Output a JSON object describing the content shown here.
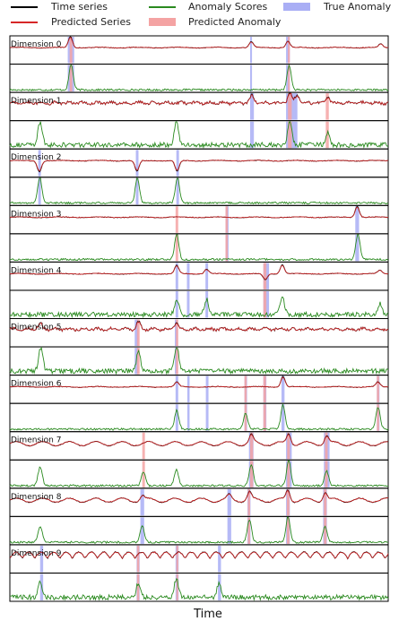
{
  "legend": {
    "time_series": "Time series",
    "predicted_series": "Predicted Series",
    "anomaly_scores": "Anomaly Scores",
    "predicted_anomaly": "Predicted Anomaly",
    "true_anomaly": "True Anomaly"
  },
  "colors": {
    "time_series": "#000000",
    "predicted_series": "#d62728",
    "anomaly_scores": "#2a8a1f",
    "predicted_anomaly": "#f4a3a3",
    "true_anomaly": "#a9aef5"
  },
  "chart_data": {
    "type": "line",
    "xlabel": "Time",
    "x_range": [
      0,
      100
    ],
    "grid": false,
    "legend_position": "top",
    "dimensions": [
      {
        "label": "Dimension 0",
        "true_anomaly": [
          [
            15.3,
            17.0
          ],
          [
            63.5,
            64.0
          ],
          [
            73.0,
            74.0
          ]
        ],
        "predicted_anomaly": [
          [
            15.8,
            16.5
          ],
          [
            73.5,
            74.0
          ]
        ],
        "series_peaks": [
          [
            16.0,
            0.95
          ],
          [
            63.8,
            0.5
          ],
          [
            73.5,
            0.55
          ],
          [
            98.0,
            0.3
          ]
        ],
        "score_peaks": [
          [
            16.2,
            0.95
          ],
          [
            73.8,
            0.9
          ]
        ]
      },
      {
        "label": "Dimension 1",
        "true_anomaly": [
          [
            63.5,
            64.5
          ],
          [
            73.0,
            76.0
          ]
        ],
        "predicted_anomaly": [
          [
            73.5,
            74.5
          ],
          [
            83.5,
            84.3
          ]
        ],
        "series_peaks": [
          [
            64.0,
            0.6
          ],
          [
            74.0,
            0.9
          ],
          [
            76.0,
            0.7
          ],
          [
            84.0,
            0.55
          ]
        ],
        "score_peaks": [
          [
            8.0,
            0.85
          ],
          [
            44.0,
            0.9
          ],
          [
            74.0,
            0.85
          ],
          [
            84.0,
            0.45
          ]
        ]
      },
      {
        "label": "Dimension 2",
        "true_anomaly": [
          [
            7.5,
            8.2
          ],
          [
            33.3,
            34.0
          ],
          [
            44.0,
            44.7
          ]
        ],
        "predicted_anomaly": [],
        "series_peaks": [
          [
            7.8,
            -0.9
          ],
          [
            33.6,
            -0.9
          ],
          [
            44.2,
            -0.9
          ]
        ],
        "score_peaks": [
          [
            7.9,
            0.95
          ],
          [
            33.7,
            0.95
          ],
          [
            44.3,
            0.95
          ]
        ]
      },
      {
        "label": "Dimension 3",
        "true_anomaly": [
          [
            57.0,
            57.8
          ],
          [
            91.3,
            92.3
          ]
        ],
        "predicted_anomaly": [
          [
            43.8,
            44.5
          ],
          [
            57.0,
            57.6
          ]
        ],
        "series_peaks": [
          [
            91.8,
            0.95
          ]
        ],
        "score_peaks": [
          [
            44.1,
            0.95
          ],
          [
            92.0,
            0.95
          ]
        ]
      },
      {
        "label": "Dimension 4",
        "true_anomaly": [
          [
            43.8,
            44.5
          ],
          [
            46.8,
            47.5
          ],
          [
            51.7,
            52.4
          ],
          [
            67.0,
            68.5
          ]
        ],
        "predicted_anomaly": [
          [
            67.0,
            67.8
          ]
        ],
        "series_peaks": [
          [
            44.1,
            0.7
          ],
          [
            52.0,
            0.4
          ],
          [
            67.5,
            -0.5
          ],
          [
            72.0,
            0.8
          ],
          [
            97.8,
            0.3
          ]
        ],
        "score_peaks": [
          [
            44.1,
            0.6
          ],
          [
            52.0,
            0.55
          ],
          [
            72.0,
            0.7
          ],
          [
            97.8,
            0.4
          ]
        ]
      },
      {
        "label": "Dimension 5",
        "true_anomaly": [
          [
            33.0,
            34.0
          ],
          [
            43.6,
            44.4
          ]
        ],
        "predicted_anomaly": [
          [
            33.6,
            34.3
          ],
          [
            43.9,
            44.5
          ]
        ],
        "series_peaks": [
          [
            8.0,
            0.5
          ],
          [
            34.0,
            0.6
          ],
          [
            44.0,
            0.55
          ]
        ],
        "score_peaks": [
          [
            8.2,
            0.9
          ],
          [
            34.0,
            0.7
          ],
          [
            44.1,
            0.95
          ]
        ]
      },
      {
        "label": "Dimension 6",
        "true_anomaly": [
          [
            43.8,
            44.5
          ],
          [
            46.9,
            47.5
          ],
          [
            51.8,
            52.5
          ],
          [
            62.0,
            62.7
          ],
          [
            67.0,
            67.8
          ],
          [
            71.8,
            72.6
          ],
          [
            97.0,
            97.7
          ]
        ],
        "predicted_anomaly": [
          [
            62.0,
            62.6
          ],
          [
            67.0,
            67.7
          ],
          [
            97.0,
            97.6
          ]
        ],
        "series_peaks": [
          [
            44.1,
            0.4
          ],
          [
            72.2,
            0.9
          ],
          [
            97.3,
            0.4
          ]
        ],
        "score_peaks": [
          [
            44.1,
            0.7
          ],
          [
            62.3,
            0.6
          ],
          [
            72.2,
            0.9
          ],
          [
            97.3,
            0.8
          ]
        ]
      },
      {
        "label": "Dimension 7",
        "true_anomaly": [
          [
            63.2,
            64.4
          ],
          [
            73.0,
            74.5
          ],
          [
            83.0,
            84.5
          ]
        ],
        "predicted_anomaly": [
          [
            35.0,
            35.7
          ],
          [
            63.5,
            64.3
          ],
          [
            73.3,
            74.0
          ],
          [
            83.3,
            84.0
          ]
        ],
        "series_peaks": [
          [
            63.8,
            0.7
          ],
          [
            73.7,
            0.9
          ],
          [
            83.7,
            0.7
          ]
        ],
        "score_peaks": [
          [
            8.0,
            0.7
          ],
          [
            35.3,
            0.5
          ],
          [
            44.0,
            0.6
          ],
          [
            63.8,
            0.8
          ],
          [
            73.7,
            0.95
          ],
          [
            83.7,
            0.55
          ]
        ]
      },
      {
        "label": "Dimension 8",
        "true_anomaly": [
          [
            34.5,
            35.5
          ],
          [
            57.5,
            58.5
          ],
          [
            62.8,
            63.6
          ],
          [
            73.0,
            74.0
          ],
          [
            82.8,
            83.8
          ]
        ],
        "predicted_anomaly": [
          [
            62.9,
            63.5
          ],
          [
            73.2,
            73.9
          ],
          [
            83.0,
            83.7
          ]
        ],
        "series_peaks": [
          [
            35.0,
            0.4
          ],
          [
            58.0,
            0.4
          ],
          [
            63.3,
            0.7
          ],
          [
            73.5,
            0.9
          ],
          [
            83.3,
            0.7
          ]
        ],
        "score_peaks": [
          [
            8.0,
            0.6
          ],
          [
            35.0,
            0.6
          ],
          [
            63.3,
            0.85
          ],
          [
            73.5,
            0.95
          ],
          [
            83.3,
            0.6
          ]
        ]
      },
      {
        "label": "Dimension 9",
        "true_anomaly": [
          [
            8.0,
            8.8
          ],
          [
            33.5,
            34.3
          ],
          [
            43.8,
            44.6
          ],
          [
            55.0,
            55.8
          ]
        ],
        "predicted_anomaly": [
          [
            33.6,
            34.2
          ],
          [
            44.0,
            44.5
          ]
        ],
        "series_peaks": [],
        "score_peaks": [
          [
            8.0,
            0.6
          ],
          [
            34.0,
            0.55
          ],
          [
            44.0,
            0.7
          ],
          [
            55.3,
            0.5
          ]
        ]
      }
    ]
  }
}
